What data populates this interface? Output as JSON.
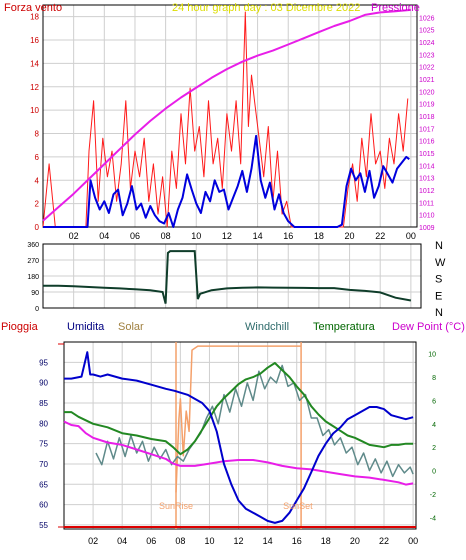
{
  "colors": {
    "grid": "#cfcfcf",
    "gust": "#ff1a1a",
    "wind": "#0000dd",
    "pressure": "#e81ee8",
    "direction": "#0f3d2a",
    "rain": "#dd0000",
    "humidity": "#0000cc",
    "solar": "#f4a06a",
    "windchill": "#5f8a8a",
    "temperature": "#228822",
    "dewpoint": "#e81ee8",
    "sunline": "#f4a06a"
  },
  "chart_data": [
    {
      "type": "line",
      "title": "24 hour graph day : 03 Dicembre 2022",
      "left_label": "Forza vento",
      "right_label": "Pressione",
      "x_ticks": [
        "02",
        "04",
        "06",
        "08",
        "10",
        "12",
        "14",
        "16",
        "18",
        "20",
        "22",
        "00"
      ],
      "ylim_left": [
        0,
        19
      ],
      "ylim_right": [
        1009,
        1027
      ],
      "yticks_left": [
        "0",
        "2",
        "4",
        "6",
        "8",
        "10",
        "12",
        "14",
        "16",
        "18"
      ],
      "yticks_right": [
        "1009",
        "1010",
        "1011",
        "1012",
        "1013",
        "1014",
        "1015",
        "1016",
        "1017",
        "1018",
        "1019",
        "1020",
        "1021",
        "1022",
        "1023",
        "1024",
        "1025",
        "1026"
      ],
      "series": [
        {
          "key": "gust",
          "x": [
            0,
            0.4,
            0.8,
            1.2,
            1.6,
            2.0,
            2.4,
            2.8,
            3.0,
            3.3,
            3.6,
            3.9,
            4.2,
            4.5,
            4.8,
            5.1,
            5.4,
            5.7,
            6.0,
            6.3,
            6.6,
            6.9,
            7.2,
            7.5,
            7.8,
            8.1,
            8.4,
            8.7,
            9.0,
            9.3,
            9.6,
            9.9,
            10.2,
            10.5,
            10.8,
            11.1,
            11.4,
            11.7,
            12.0,
            12.3,
            12.6,
            12.9,
            13.2,
            13.4,
            13.6,
            13.8,
            14.1,
            14.4,
            14.7,
            15.0,
            15.3,
            15.6,
            15.9,
            16.2,
            16.6,
            17.0,
            17.4,
            17.8,
            18.2,
            18.6,
            19.0,
            19.3,
            19.6,
            19.9,
            20.2,
            20.5,
            20.8,
            21.1,
            21.4,
            21.7,
            22.0,
            22.3,
            22.6,
            22.9,
            23.2,
            23.5,
            23.8
          ],
          "y": [
            0,
            5.4,
            0,
            0,
            0,
            0,
            0,
            0,
            6.5,
            10.8,
            2.2,
            7.6,
            4.3,
            6.5,
            2.2,
            5.4,
            10.8,
            3.3,
            6.5,
            4.3,
            7.6,
            2.2,
            5.4,
            1.1,
            4.3,
            0,
            6.5,
            3.3,
            9.7,
            5.4,
            11.9,
            6.5,
            8.6,
            4.3,
            10.8,
            5.4,
            7.6,
            3.3,
            9.7,
            6.5,
            10.8,
            5.4,
            18.4,
            8.6,
            13.0,
            10.8,
            7.6,
            4.3,
            8.6,
            2.2,
            6.5,
            1.1,
            2.2,
            0,
            0,
            0,
            0,
            0,
            0,
            0,
            0,
            0,
            0,
            3.3,
            5.4,
            2.2,
            7.6,
            4.3,
            9.7,
            5.4,
            6.5,
            3.3,
            7.6,
            5.4,
            9.7,
            6.5,
            11.0
          ]
        },
        {
          "key": "wind",
          "x": [
            0,
            0.5,
            1.0,
            1.5,
            2.0,
            2.5,
            2.9,
            3.1,
            3.4,
            3.7,
            4.0,
            4.3,
            4.6,
            4.9,
            5.2,
            5.5,
            5.8,
            6.1,
            6.4,
            6.7,
            7.0,
            7.3,
            7.6,
            7.9,
            8.2,
            8.5,
            8.8,
            9.1,
            9.4,
            9.7,
            10.0,
            10.3,
            10.6,
            10.9,
            11.2,
            11.5,
            11.8,
            12.1,
            12.4,
            12.7,
            13.0,
            13.3,
            13.6,
            13.9,
            14.2,
            14.5,
            14.8,
            15.1,
            15.4,
            15.7,
            16.0,
            16.4,
            16.8,
            17.2,
            17.6,
            18.0,
            18.4,
            18.8,
            19.2,
            19.5,
            19.8,
            20.1,
            20.4,
            20.7,
            21.0,
            21.3,
            21.6,
            21.9,
            22.2,
            22.5,
            22.8,
            23.1,
            23.4,
            23.7,
            23.9
          ],
          "y": [
            0,
            0,
            0,
            0,
            0,
            0,
            0,
            4.0,
            2.5,
            1.5,
            2.2,
            1.2,
            2.8,
            3.2,
            1.0,
            2.0,
            3.5,
            1.5,
            2.0,
            0.8,
            1.8,
            1.0,
            0.5,
            0.3,
            1.2,
            0,
            1.5,
            2.5,
            4.5,
            3.2,
            2.0,
            1.2,
            3.0,
            2.2,
            4.0,
            3.0,
            3.2,
            1.5,
            2.5,
            3.5,
            4.8,
            3.0,
            5.0,
            7.8,
            4.0,
            2.5,
            3.8,
            1.5,
            2.8,
            1.2,
            0.5,
            0,
            0,
            0,
            0,
            0,
            0,
            0,
            0,
            0.2,
            3.5,
            5.0,
            4.0,
            4.6,
            3.0,
            4.8,
            2.5,
            3.5,
            5.2,
            4.5,
            3.8,
            5.0,
            5.5,
            6.0,
            5.8
          ]
        },
        {
          "key": "pressure",
          "x": [
            0,
            1,
            2,
            3,
            4,
            5,
            6,
            7,
            8,
            9,
            10,
            11,
            12,
            13,
            14,
            15,
            16,
            17,
            18,
            19,
            20,
            21,
            22,
            23,
            24
          ],
          "y": [
            1009.5,
            1010.6,
            1011.7,
            1012.9,
            1014.1,
            1015.3,
            1016.5,
            1017.6,
            1018.6,
            1019.5,
            1020.3,
            1021.1,
            1021.8,
            1022.4,
            1022.9,
            1023.3,
            1023.8,
            1024.3,
            1024.8,
            1025.3,
            1025.7,
            1026.2,
            1026.4,
            1026.5,
            1026.6
          ]
        }
      ]
    },
    {
      "type": "line",
      "right_labels": [
        "N",
        "W",
        "S",
        "E",
        "N"
      ],
      "yticks_left": [
        "0",
        "90",
        "180",
        "270",
        "360"
      ],
      "ylim": [
        0,
        360
      ],
      "series": [
        {
          "key": "direction",
          "x": [
            0,
            1,
            2,
            3,
            4,
            5,
            6,
            7,
            7.8,
            8.0,
            8.15,
            8.3,
            9.9,
            10.1,
            10.25,
            11,
            12,
            13,
            14,
            15,
            16,
            17,
            18,
            19,
            20,
            21,
            22,
            23,
            24
          ],
          "y": [
            125,
            125,
            122,
            118,
            114,
            110,
            105,
            100,
            90,
            25,
            310,
            320,
            320,
            50,
            80,
            100,
            110,
            114,
            116,
            115,
            114,
            113,
            112,
            112,
            102,
            96,
            88,
            58,
            42
          ]
        }
      ]
    },
    {
      "type": "line",
      "labels": [
        "Pioggia",
        "Umidita",
        "Solar",
        "Windchill",
        "Temperatura",
        "Dew Point (°C)"
      ],
      "sunrise_label": "SunRise",
      "sunset_label": "SunSet",
      "sunrise_hour": 7.7,
      "sunset_hour": 16.3,
      "ylim_humidity": [
        54,
        100
      ],
      "ylim_temperature": [
        -5,
        11
      ],
      "yticks_humidity": [
        "55",
        "60",
        "65",
        "70",
        "75",
        "80",
        "85",
        "90",
        "95"
      ],
      "yticks_temperature": [
        "-4",
        "-2",
        "0",
        "2",
        "4",
        "6",
        "8",
        "10"
      ],
      "series": [
        {
          "key": "humidity",
          "x": [
            0,
            0.5,
            1.2,
            1.6,
            1.8,
            2.0,
            2.5,
            3.0,
            4,
            5,
            6,
            7,
            7.6,
            8.5,
            9.5,
            10,
            10.5,
            11,
            11.5,
            12,
            12.5,
            13,
            13.5,
            14,
            14.5,
            15,
            15.5,
            16,
            16.5,
            17,
            17.5,
            18,
            18.5,
            19,
            19.5,
            20,
            20.5,
            21,
            21.5,
            22,
            22.5,
            23,
            23.5,
            24
          ],
          "y": [
            91,
            91,
            91.5,
            97.5,
            92,
            92,
            91.5,
            92,
            91,
            90.5,
            89.5,
            88.5,
            88,
            87,
            85,
            83,
            78,
            70,
            65,
            61,
            59,
            58,
            57,
            56,
            55.5,
            56,
            58,
            61,
            64,
            68,
            72,
            75,
            77.5,
            79,
            81,
            82,
            83,
            84,
            84,
            83.5,
            82,
            81.5,
            81,
            81.5
          ]
        },
        {
          "key": "solar",
          "x": [
            7.7,
            7.9,
            8.0,
            8.2,
            8.4,
            8.6,
            8.8,
            9.2,
            10,
            11,
            12,
            13,
            14,
            15,
            16,
            16.3
          ],
          "y": [
            63,
            81,
            86,
            72,
            83,
            78,
            98,
            99,
            99,
            99,
            99,
            99,
            99,
            99,
            99,
            99
          ]
        },
        {
          "key": "windchill",
          "x": [
            0,
            2,
            2.2,
            2.6,
            3.0,
            3.4,
            3.8,
            4.2,
            4.6,
            5.0,
            5.4,
            5.8,
            6.2,
            6.6,
            7.0,
            7.4,
            7.8,
            8.2,
            8.6,
            9.0,
            9.4,
            9.8,
            10.2,
            10.6,
            11.0,
            11.4,
            11.8,
            12.2,
            12.6,
            13.0,
            13.4,
            13.8,
            14.2,
            14.6,
            15.0,
            15.4,
            15.8,
            16.2,
            16.6,
            17.0,
            17.4,
            17.8,
            18.2,
            18.6,
            19.0,
            19.4,
            19.8,
            20.2,
            20.6,
            21.0,
            21.4,
            21.8,
            22.2,
            22.6,
            23.0,
            23.4,
            23.8,
            24
          ],
          "y": [
            null,
            null,
            1.5,
            0.5,
            2.5,
            1.0,
            2.8,
            1.2,
            3.0,
            1.5,
            2.5,
            0.8,
            2.0,
            1.0,
            1.8,
            0.5,
            1.2,
            0.8,
            1.8,
            2.5,
            3.2,
            4.5,
            5.5,
            4.0,
            6.5,
            5.0,
            7.0,
            5.5,
            7.5,
            6.0,
            8.5,
            7.0,
            8.0,
            7.5,
            9.0,
            7.2,
            7.5,
            6.0,
            6.5,
            4.5,
            4.5,
            3.0,
            3.5,
            2.2,
            2.8,
            1.5,
            2.0,
            0.5,
            1.5,
            0.0,
            1.0,
            -0.2,
            0.8,
            -0.5,
            0.5,
            -0.2,
            0.3,
            -0.3
          ]
        },
        {
          "key": "temperature",
          "x": [
            0,
            0.5,
            1,
            2,
            3,
            4,
            5,
            6,
            7,
            7.5,
            8,
            8.5,
            9,
            9.5,
            10,
            10.5,
            11,
            11.5,
            12,
            12.5,
            13,
            13.5,
            14,
            14.5,
            15,
            15.5,
            16,
            16.5,
            17,
            17.5,
            18,
            18.5,
            19,
            19.5,
            20,
            20.5,
            21,
            21.5,
            22,
            22.5,
            23,
            23.5,
            24
          ],
          "y": [
            5.0,
            5.0,
            4.6,
            4.0,
            3.7,
            3.2,
            3.0,
            2.7,
            2.5,
            2.0,
            1.4,
            1.8,
            2.5,
            3.5,
            4.5,
            5.5,
            6.2,
            6.8,
            7.4,
            7.8,
            8.0,
            8.3,
            8.8,
            9.2,
            8.6,
            8.0,
            7.2,
            6.5,
            5.5,
            4.8,
            4.2,
            3.8,
            3.4,
            3.0,
            2.8,
            2.5,
            2.2,
            2.1,
            2.0,
            2.2,
            2.2,
            2.3,
            2.3
          ]
        },
        {
          "key": "dewpoint",
          "x": [
            0,
            0.5,
            1,
            1.5,
            2,
            3,
            4,
            5,
            6,
            7,
            7.5,
            8,
            9,
            10,
            11,
            12,
            13,
            14,
            15,
            16,
            17,
            18,
            19,
            20,
            21,
            22,
            23,
            23.5,
            24
          ],
          "y": [
            4.2,
            3.9,
            3.8,
            3.2,
            2.8,
            2.4,
            2.2,
            1.8,
            1.4,
            1.0,
            0.6,
            0.4,
            0.4,
            0.6,
            0.8,
            0.9,
            0.9,
            0.7,
            0.4,
            0.2,
            0.1,
            -0.1,
            -0.3,
            -0.5,
            -0.6,
            -0.8,
            -1.0,
            -1.2,
            -1.1
          ]
        }
      ]
    }
  ]
}
